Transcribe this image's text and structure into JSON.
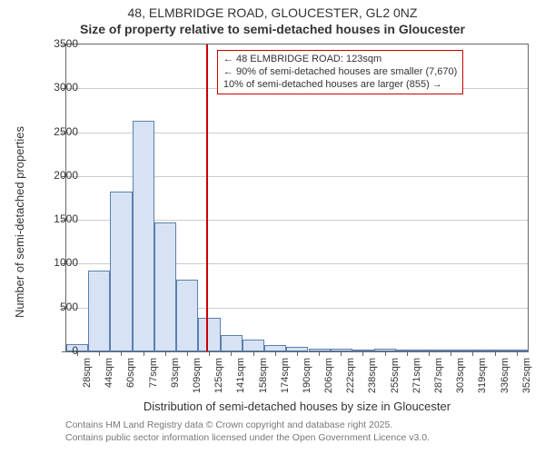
{
  "title_line1": "48, ELMBRIDGE ROAD, GLOUCESTER, GL2 0NZ",
  "title_line2": "Size of property relative to semi-detached houses in Gloucester",
  "yaxis_label": "Number of semi-detached properties",
  "xaxis_label": "Distribution of semi-detached houses by size in Gloucester",
  "footer_line1": "Contains HM Land Registry data © Crown copyright and database right 2025.",
  "footer_line2": "Contains public sector information licensed under the Open Government Licence v3.0.",
  "annot": {
    "line1": "← 48 ELMBRIDGE ROAD: 123sqm",
    "line2": "← 90% of semi-detached houses are smaller (7,670)",
    "line3": "10% of semi-detached houses are larger (855) →"
  },
  "chart": {
    "type": "histogram",
    "background_color": "#ffffff",
    "grid_color": "#cccccc",
    "border_color": "#666666",
    "bar_fill": "#d7e3f4",
    "bar_stroke": "#5b7fb0",
    "refline_color": "#cc0000",
    "annot_border": "#cc0000",
    "refline_x": 123,
    "x_min": 20,
    "x_max": 360,
    "bin_width": 16.2,
    "y_min": 0,
    "y_max": 3500,
    "y_tick_step": 500,
    "y_ticks": [
      0,
      500,
      1000,
      1500,
      2000,
      2500,
      3000,
      3500
    ],
    "x_tick_labels": [
      "28sqm",
      "44sqm",
      "60sqm",
      "77sqm",
      "93sqm",
      "109sqm",
      "125sqm",
      "141sqm",
      "158sqm",
      "174sqm",
      "190sqm",
      "206sqm",
      "222sqm",
      "238sqm",
      "255sqm",
      "271sqm",
      "287sqm",
      "303sqm",
      "319sqm",
      "336sqm",
      "352sqm"
    ],
    "x_tick_values": [
      28,
      44,
      60,
      77,
      93,
      109,
      125,
      141,
      158,
      174,
      190,
      206,
      222,
      238,
      255,
      271,
      287,
      303,
      319,
      336,
      352
    ],
    "bars": [
      {
        "x0": 20.0,
        "count": 80
      },
      {
        "x0": 36.2,
        "count": 920
      },
      {
        "x0": 52.4,
        "count": 1820
      },
      {
        "x0": 68.6,
        "count": 2630
      },
      {
        "x0": 84.9,
        "count": 1470
      },
      {
        "x0": 101.1,
        "count": 820
      },
      {
        "x0": 117.3,
        "count": 380
      },
      {
        "x0": 133.5,
        "count": 190
      },
      {
        "x0": 149.7,
        "count": 130
      },
      {
        "x0": 165.9,
        "count": 70
      },
      {
        "x0": 182.1,
        "count": 50
      },
      {
        "x0": 198.4,
        "count": 35
      },
      {
        "x0": 214.6,
        "count": 30
      },
      {
        "x0": 230.8,
        "count": 20
      },
      {
        "x0": 247.0,
        "count": 35
      },
      {
        "x0": 263.2,
        "count": 15
      },
      {
        "x0": 279.4,
        "count": 5
      },
      {
        "x0": 295.6,
        "count": 5
      },
      {
        "x0": 311.9,
        "count": 5
      },
      {
        "x0": 328.1,
        "count": 5
      },
      {
        "x0": 344.3,
        "count": 3
      }
    ],
    "label_fontsize": 13,
    "tick_fontsize": 12,
    "xtick_fontsize": 11,
    "title_fontsize": 14,
    "annot_fontsize": 11,
    "footer_fontsize": 10.5
  }
}
